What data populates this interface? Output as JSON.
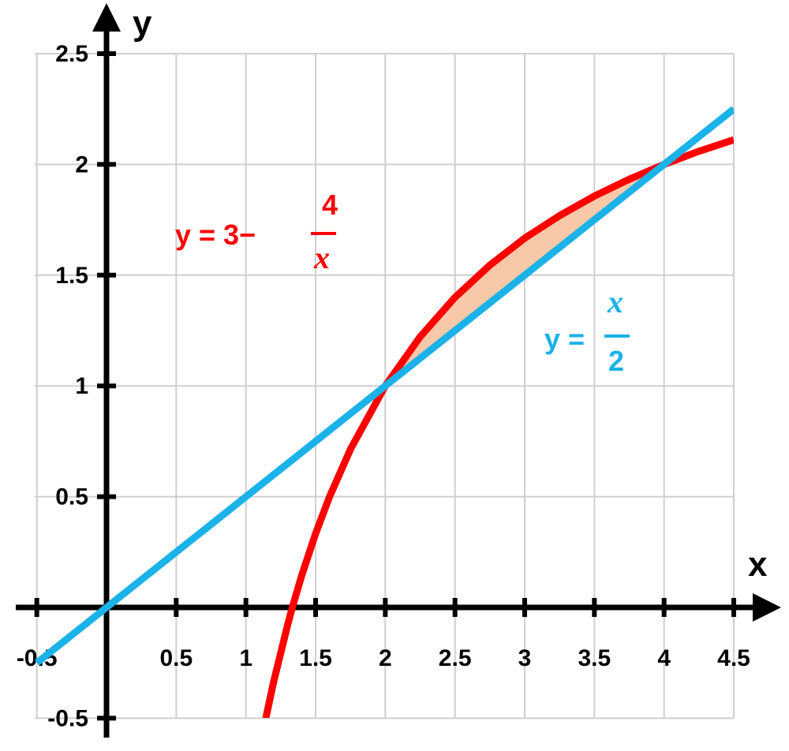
{
  "chart_data": {
    "type": "line",
    "title": "",
    "xlabel": "x",
    "ylabel": "y",
    "xlim": [
      -0.5,
      4.5
    ],
    "ylim": [
      -0.5,
      2.5
    ],
    "grid": true,
    "x_ticks": [
      {
        "value": -0.5,
        "label": "-0.5"
      },
      {
        "value": 0.5,
        "label": "0.5"
      },
      {
        "value": 1,
        "label": "1"
      },
      {
        "value": 1.5,
        "label": "1.5"
      },
      {
        "value": 2,
        "label": "2"
      },
      {
        "value": 2.5,
        "label": "2.5"
      },
      {
        "value": 3,
        "label": "3"
      },
      {
        "value": 3.5,
        "label": "3.5"
      },
      {
        "value": 4,
        "label": "4"
      },
      {
        "value": 4.5,
        "label": "4.5"
      }
    ],
    "y_ticks": [
      {
        "value": -0.5,
        "label": "-0.5"
      },
      {
        "value": 0.5,
        "label": "0.5"
      },
      {
        "value": 1,
        "label": "1"
      },
      {
        "value": 1.5,
        "label": "1.5"
      },
      {
        "value": 2,
        "label": "2"
      },
      {
        "value": 2.5,
        "label": "2.5"
      }
    ],
    "series": [
      {
        "name": "y = 3 − 4/x",
        "color": "#ff0000",
        "x": [
          1.143,
          1.2,
          1.3,
          1.333,
          1.4,
          1.5,
          1.6,
          1.75,
          2,
          2.25,
          2.5,
          2.75,
          3,
          3.25,
          3.5,
          3.75,
          4,
          4.25,
          4.5
        ],
        "y": [
          -0.5,
          -0.333,
          -0.077,
          0,
          0.143,
          0.333,
          0.5,
          0.714,
          1,
          1.222,
          1.4,
          1.545,
          1.667,
          1.769,
          1.857,
          1.933,
          2,
          2.059,
          2.111
        ]
      },
      {
        "name": "y = x/2",
        "color": "#1ab2e8",
        "x": [
          -0.5,
          4.5
        ],
        "y": [
          -0.25,
          2.25
        ]
      }
    ],
    "shaded_region": {
      "between": [
        "y = 3 − 4/x",
        "y = x/2"
      ],
      "x_from": 2,
      "x_to": 4,
      "color": "#f8c9a8"
    },
    "annotations": {
      "red_equation": {
        "prefix": "y = 3−",
        "numerator": "4",
        "denominator": "x",
        "color": "#ff0000"
      },
      "blue_equation": {
        "prefix": "y =",
        "numerator": "x",
        "denominator": "2",
        "color": "#1ab2e8"
      }
    }
  }
}
